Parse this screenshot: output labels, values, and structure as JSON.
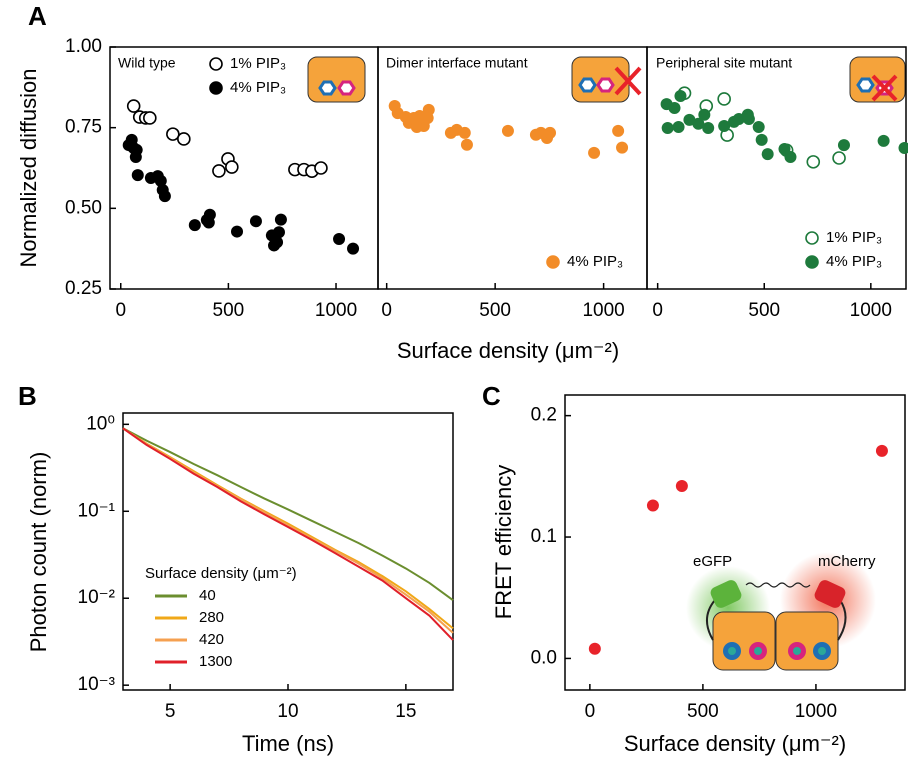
{
  "chart_data": [
    {
      "type": "scatter",
      "panel": "A",
      "title": "Wild type",
      "ylabel": "Normalized diffusion",
      "xlabel": "Surface density (μm⁻²)",
      "xlim": [
        -50,
        1195
      ],
      "xticks": [
        0,
        500,
        1000
      ],
      "ylim": [
        0.25,
        1.0
      ],
      "yticks": [
        {
          "value": 0.25,
          "label": "0.25"
        },
        {
          "value": 0.5,
          "label": "0.50"
        },
        {
          "value": 0.75,
          "label": "0.75"
        },
        {
          "value": 1.0,
          "label": "1.00"
        }
      ],
      "legend": "upper right",
      "series": [
        {
          "name": "1% PIP₃",
          "color": "#000000",
          "marker": "open",
          "x": [
            60,
            88,
            116,
            135,
            242,
            293,
            456,
            498,
            516,
            809,
            851,
            888,
            930
          ],
          "values": [
            0.817,
            0.783,
            0.78,
            0.78,
            0.73,
            0.715,
            0.616,
            0.653,
            0.628,
            0.62,
            0.62,
            0.615,
            0.625
          ]
        },
        {
          "name": "4% PIP₃",
          "color": "#000000",
          "marker": "filled",
          "x": [
            37,
            51,
            60,
            74,
            70,
            79,
            140,
            172,
            186,
            195,
            205,
            344,
            400,
            414,
            409,
            540,
            628,
            702,
            712,
            726,
            735,
            744,
            1014,
            1079
          ],
          "values": [
            0.696,
            0.712,
            0.687,
            0.681,
            0.659,
            0.603,
            0.594,
            0.6,
            0.585,
            0.557,
            0.538,
            0.448,
            0.464,
            0.48,
            0.456,
            0.428,
            0.46,
            0.416,
            0.385,
            0.395,
            0.426,
            0.465,
            0.405,
            0.375
          ]
        }
      ]
    },
    {
      "type": "scatter",
      "title": "Dimer interface mutant",
      "xlim": [
        -40,
        1200
      ],
      "xticks": [
        0,
        500,
        1000
      ],
      "ylim": [
        0.25,
        1.0
      ],
      "legend": "lower right",
      "series": [
        {
          "name": "4% PIP₃",
          "color": "#f28c28",
          "marker": "filled",
          "x": [
            37,
            51,
            88,
            102,
            125,
            152,
            171,
            189,
            194,
            139,
            296,
            323,
            360,
            370,
            559,
            688,
            711,
            739,
            753,
            956,
            1067,
            1085
          ],
          "values": [
            0.817,
            0.795,
            0.783,
            0.765,
            0.78,
            0.786,
            0.755,
            0.78,
            0.805,
            0.752,
            0.734,
            0.743,
            0.734,
            0.697,
            0.74,
            0.728,
            0.734,
            0.718,
            0.734,
            0.672,
            0.74,
            0.688
          ]
        }
      ]
    },
    {
      "type": "scatter",
      "title": "Peripheral site mutant",
      "xlim": [
        -50,
        1165
      ],
      "xticks": [
        0,
        500,
        1000
      ],
      "ylim": [
        0.25,
        1.0
      ],
      "legend": "lower right",
      "series": [
        {
          "name": "1% PIP₃",
          "color": "#1e7a3c",
          "marker": "open",
          "x": [
            126,
            228,
            312,
            326,
            605,
            730,
            851
          ],
          "values": [
            0.857,
            0.817,
            0.839,
            0.727,
            0.68,
            0.644,
            0.656
          ]
        },
        {
          "name": "4% PIP₃",
          "color": "#1e7a3c",
          "marker": "filled",
          "x": [
            42,
            107,
            79,
            47,
            98,
            149,
            191,
            219,
            237,
            312,
            358,
            381,
            423,
            428,
            474,
            488,
            516,
            595,
            623,
            874,
            1060,
            1158
          ],
          "values": [
            0.823,
            0.848,
            0.811,
            0.749,
            0.752,
            0.774,
            0.762,
            0.79,
            0.749,
            0.755,
            0.768,
            0.777,
            0.79,
            0.777,
            0.752,
            0.712,
            0.668,
            0.684,
            0.659,
            0.696,
            0.709,
            0.687
          ]
        }
      ]
    },
    {
      "type": "line",
      "panel": "B",
      "ylabel": "Photon count (norm)",
      "xlabel": "Time (ns)",
      "log_y": true,
      "xlim": [
        3,
        17
      ],
      "xticks": [
        5,
        10,
        15
      ],
      "ylim": [
        0.00088,
        1.35
      ],
      "yticks": [
        {
          "value": 1,
          "label": "10⁰"
        },
        {
          "value": 0.1,
          "label": "10⁻¹"
        },
        {
          "value": 0.01,
          "label": "10⁻²"
        },
        {
          "value": 0.001,
          "label": "10⁻³"
        }
      ],
      "legend": "lower left",
      "legend_title": "Surface density (μm⁻²)",
      "x": [
        3,
        4,
        5,
        6,
        7,
        8,
        9,
        10,
        11,
        12,
        13,
        14,
        15,
        16,
        17
      ],
      "series": [
        {
          "name": "40",
          "color": "#6b8e2f",
          "values": [
            0.9,
            0.65,
            0.48,
            0.35,
            0.26,
            0.19,
            0.14,
            0.105,
            0.078,
            0.058,
            0.043,
            0.031,
            0.022,
            0.015,
            0.0095
          ]
        },
        {
          "name": "280",
          "color": "#f0a818",
          "values": [
            0.9,
            0.6,
            0.42,
            0.29,
            0.2,
            0.14,
            0.1,
            0.072,
            0.051,
            0.036,
            0.026,
            0.018,
            0.012,
            0.0075,
            0.0045
          ]
        },
        {
          "name": "420",
          "color": "#f5a050",
          "values": [
            0.9,
            0.59,
            0.41,
            0.28,
            0.195,
            0.137,
            0.097,
            0.069,
            0.049,
            0.035,
            0.025,
            0.017,
            0.011,
            0.007,
            0.004
          ]
        },
        {
          "name": "1300",
          "color": "#e0202a",
          "values": [
            0.9,
            0.58,
            0.4,
            0.27,
            0.19,
            0.13,
            0.092,
            0.066,
            0.047,
            0.033,
            0.023,
            0.016,
            0.01,
            0.0063,
            0.0033
          ]
        }
      ]
    },
    {
      "type": "scatter",
      "panel": "C",
      "ylabel": "FRET efficiency",
      "xlabel": "Surface density (μm⁻²)",
      "xlim": [
        -110,
        1394
      ],
      "xticks": [
        0,
        500,
        1000
      ],
      "ylim": [
        -0.026,
        0.217
      ],
      "yticks": [
        {
          "value": 0,
          "label": "0.0"
        },
        0.1,
        0.2
      ],
      "annotations": [
        "eGFP",
        "mCherry"
      ],
      "series": [
        {
          "color": "#e8232a",
          "marker": "filled",
          "x": [
            22,
            279,
            407,
            1292
          ],
          "values": [
            0.008,
            0.126,
            0.142,
            0.171
          ]
        }
      ]
    }
  ]
}
